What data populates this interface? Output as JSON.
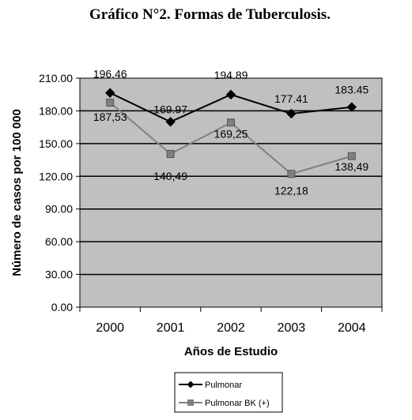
{
  "chart_data": {
    "type": "line",
    "title": "Gráfico N°2. Formas de Tuberculosis.",
    "xlabel": "Años de Estudio",
    "ylabel": "Número de casos por 100 000",
    "categories": [
      "2000",
      "2001",
      "2002",
      "2003",
      "2004"
    ],
    "yticks": [
      "0.00",
      "30.00",
      "60.00",
      "90.00",
      "120.00",
      "150.00",
      "180.00",
      "210.00"
    ],
    "ylim": [
      0,
      210
    ],
    "grid": "horizontal",
    "legend_position": "bottom",
    "plot_background": "#c0c0c0",
    "series": [
      {
        "name": "Pulmonar",
        "values": [
          196.46,
          169.97,
          194.89,
          177.41,
          183.45
        ],
        "labels": [
          "196.46",
          "169.97",
          "194.89",
          "177.41",
          "183.45"
        ],
        "color": "#000000",
        "marker": "diamond"
      },
      {
        "name": "Pulmonar BK (+)",
        "values": [
          187.53,
          140.49,
          169.25,
          122.18,
          138.49
        ],
        "labels": [
          "187,53",
          "140,49",
          "169,25",
          "122,18",
          "138,49"
        ],
        "color": "#808080",
        "marker": "square"
      }
    ]
  }
}
